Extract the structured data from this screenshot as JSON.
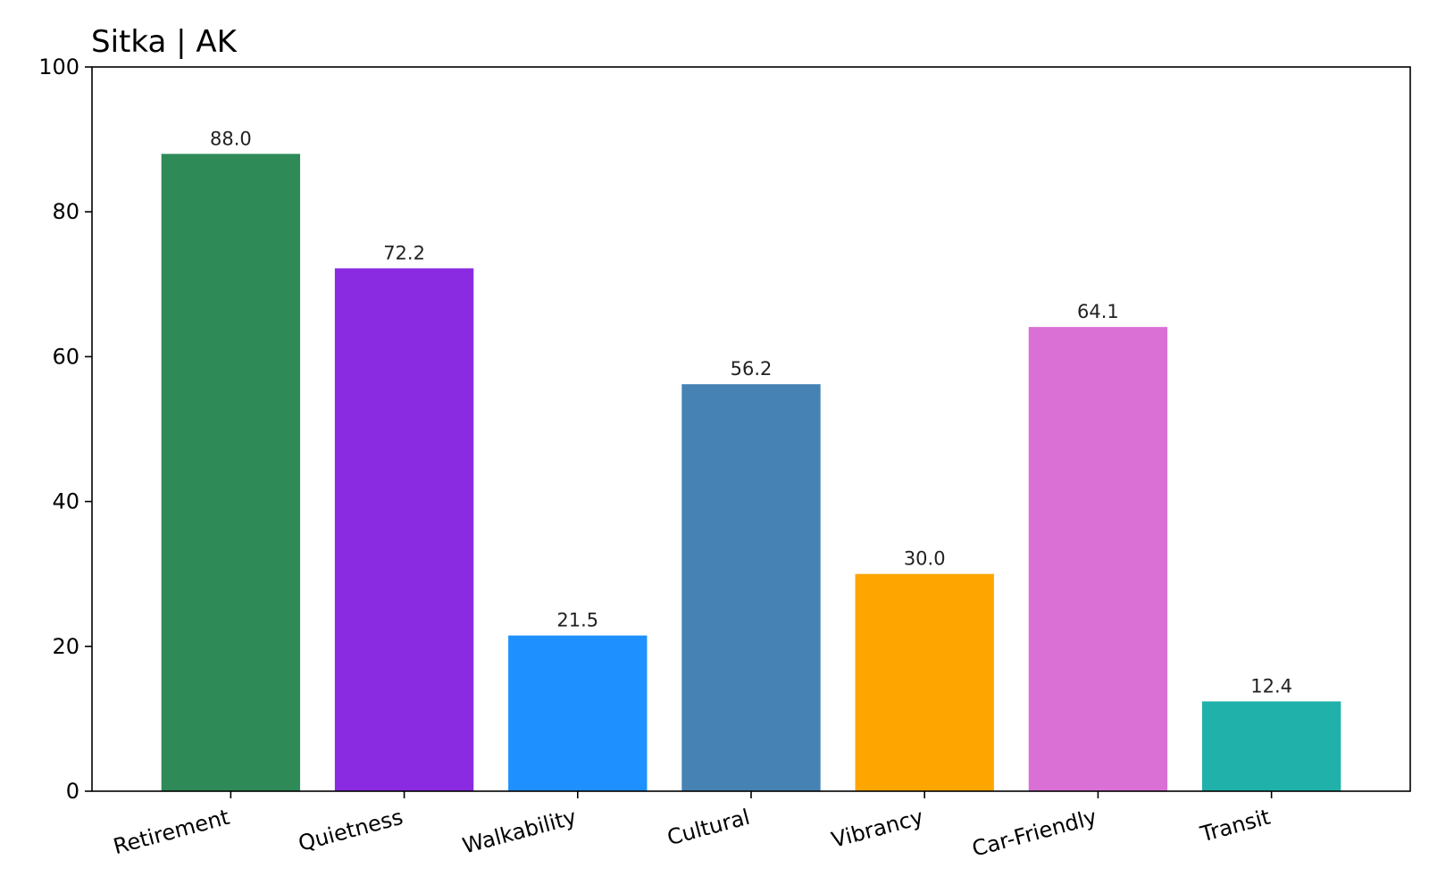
{
  "chart_data": {
    "type": "bar",
    "title": "Sitka | AK",
    "xlabel": "",
    "ylabel": "",
    "categories": [
      "Retirement",
      "Quietness",
      "Walkability",
      "Cultural",
      "Vibrancy",
      "Car-Friendly",
      "Transit"
    ],
    "values": [
      88.0,
      72.2,
      21.5,
      56.2,
      30.0,
      64.1,
      12.4
    ],
    "value_labels": [
      "88.0",
      "72.2",
      "21.5",
      "56.2",
      "30.0",
      "64.1",
      "12.4"
    ],
    "colors": [
      "#2e8b57",
      "#8a2be2",
      "#1e90ff",
      "#4682b4",
      "#ffa500",
      "#da70d6",
      "#20b2aa"
    ],
    "ylim": [
      0,
      100
    ],
    "yticks": [
      0,
      20,
      40,
      60,
      80,
      100
    ],
    "grid": false,
    "legend": "none"
  }
}
